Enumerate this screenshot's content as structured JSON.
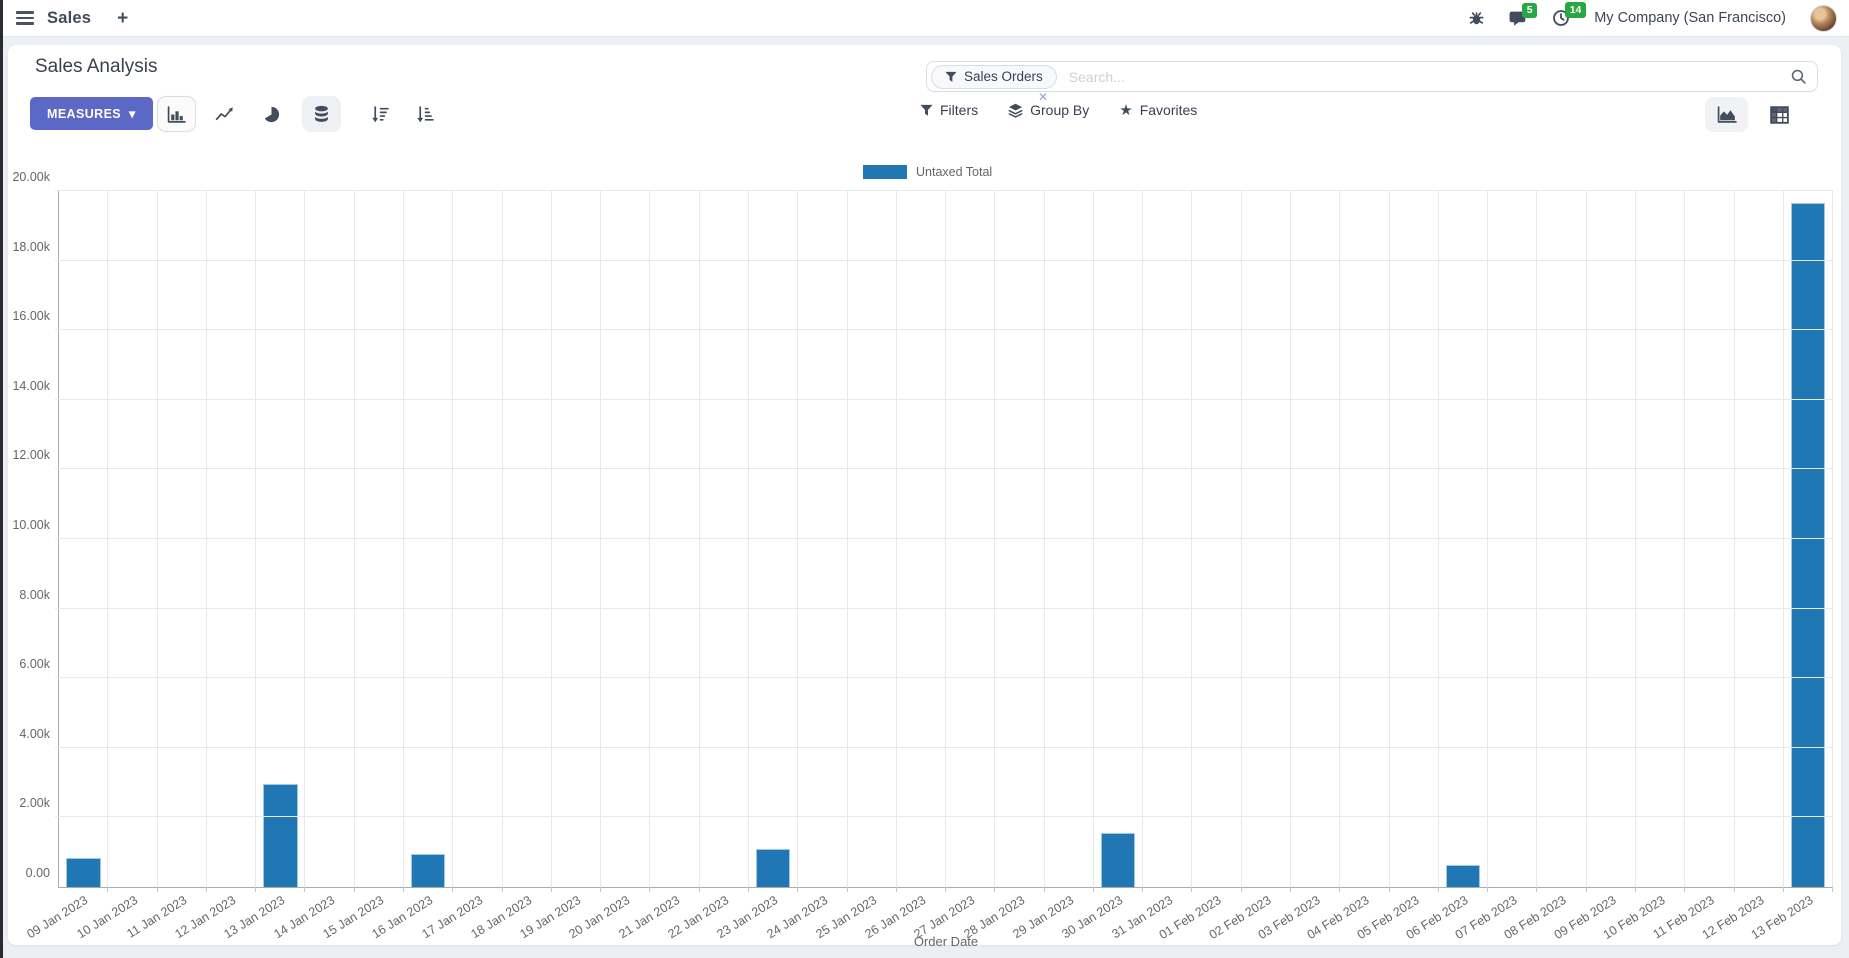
{
  "navbar": {
    "brand": "Sales",
    "plus": "+",
    "messages_badge": "5",
    "activities_badge": "14",
    "company": "My Company (San Francisco)"
  },
  "control_panel": {
    "title": "Sales Analysis",
    "measures_label": "MEASURES",
    "measures_caret": "▾",
    "search": {
      "facet": "Sales Orders",
      "placeholder": "Search...",
      "facet_close": "✕"
    },
    "filters_label": "Filters",
    "group_by_label": "Group By",
    "favorites_label": "Favorites"
  },
  "icons": {
    "star": "★"
  },
  "chart_data": {
    "type": "bar",
    "legend": [
      "Untaxed Total"
    ],
    "legend_position": "top",
    "series_color": "#2077b4",
    "grid": true,
    "xlabel": "Order Date",
    "ylim": [
      0,
      20000
    ],
    "y_ticks": [
      "0.00",
      "2.00k",
      "4.00k",
      "6.00k",
      "8.00k",
      "10.00k",
      "12.00k",
      "14.00k",
      "16.00k",
      "18.00k",
      "20.00k"
    ],
    "categories": [
      "09 Jan 2023",
      "10 Jan 2023",
      "11 Jan 2023",
      "12 Jan 2023",
      "13 Jan 2023",
      "14 Jan 2023",
      "15 Jan 2023",
      "16 Jan 2023",
      "17 Jan 2023",
      "18 Jan 2023",
      "19 Jan 2023",
      "20 Jan 2023",
      "21 Jan 2023",
      "22 Jan 2023",
      "23 Jan 2023",
      "24 Jan 2023",
      "25 Jan 2023",
      "26 Jan 2023",
      "27 Jan 2023",
      "28 Jan 2023",
      "29 Jan 2023",
      "30 Jan 2023",
      "31 Jan 2023",
      "01 Feb 2023",
      "02 Feb 2023",
      "03 Feb 2023",
      "04 Feb 2023",
      "05 Feb 2023",
      "06 Feb 2023",
      "07 Feb 2023",
      "08 Feb 2023",
      "09 Feb 2023",
      "10 Feb 2023",
      "11 Feb 2023",
      "12 Feb 2023",
      "13 Feb 2023"
    ],
    "series": [
      {
        "name": "Untaxed Total",
        "values": [
          830,
          0,
          0,
          0,
          2950,
          0,
          0,
          950,
          0,
          0,
          0,
          0,
          0,
          0,
          1090,
          0,
          0,
          0,
          0,
          0,
          0,
          1550,
          0,
          0,
          0,
          0,
          0,
          0,
          630,
          0,
          0,
          0,
          0,
          0,
          0,
          19660
        ]
      }
    ]
  }
}
